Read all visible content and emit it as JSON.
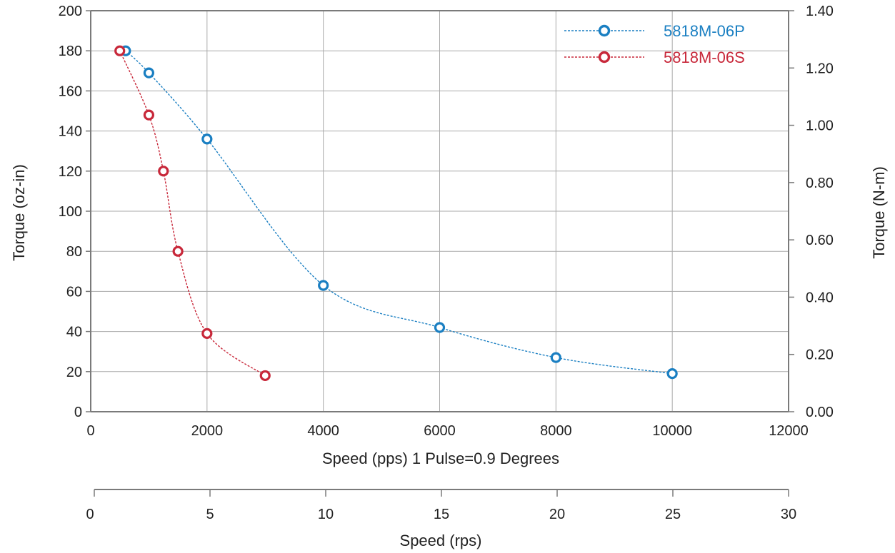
{
  "chart_data": {
    "type": "line",
    "title": "",
    "xlabel": "Speed (pps) 1 Pulse=0.9 Degrees",
    "ylabel": "Torque (oz-in)",
    "y2label": "Torque (N-m)",
    "x2label": "Speed (rps)",
    "xlim": [
      0,
      12000
    ],
    "ylim": [
      0,
      200
    ],
    "y2lim": [
      0,
      1.4
    ],
    "x2lim": [
      0,
      30
    ],
    "xticks": [
      "0",
      "2000",
      "4000",
      "6000",
      "8000",
      "10000",
      "12000"
    ],
    "yticks": [
      "0",
      "20",
      "40",
      "60",
      "80",
      "100",
      "120",
      "140",
      "160",
      "180",
      "200"
    ],
    "y2ticks": [
      "0.00",
      "0.20",
      "0.40",
      "0.60",
      "0.80",
      "1.00",
      "1.20",
      "1.40"
    ],
    "x2ticks": [
      "0",
      "5",
      "10",
      "15",
      "20",
      "25",
      "30"
    ],
    "grid": true,
    "legend_position": "top-right",
    "series": [
      {
        "name": "5818M-06P",
        "color": "#1a7fc2",
        "x": [
          600,
          1000,
          2000,
          4000,
          6000,
          8000,
          10000
        ],
        "y": [
          180,
          169,
          136,
          63,
          42,
          27,
          19
        ]
      },
      {
        "name": "5818M-06S",
        "color": "#c8283a",
        "x": [
          500,
          1000,
          1250,
          1500,
          2000,
          3000
        ],
        "y": [
          180,
          148,
          120,
          80,
          39,
          18
        ]
      }
    ]
  }
}
